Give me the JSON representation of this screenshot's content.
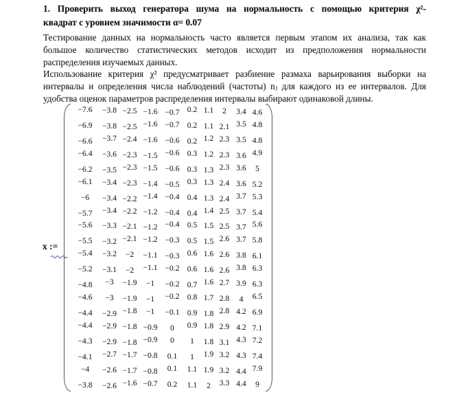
{
  "heading": {
    "line1": "1. Проверить выход генератора шума на нормальность с помощью критерия χ²-",
    "line2": "квадрат с уровнем значимости α= 0.07"
  },
  "paragraph1": {
    "line1": "Тестирование данных на нормальность часто является первым этапом их анализа, так как",
    "line2": "большое количество статистических методов исходит из предположения нормальности",
    "line3": "распределения изучаемых данных."
  },
  "paragraph2": {
    "line1": "Использование критерия χ² предусматривает разбиение размаха варьирования выборки на",
    "line2": "интервалы и определения числа наблюдений (частоты) nⱼ для каждого из ее интервалов. Для",
    "line3": "удобства оценок параметров распределения интервалы выбирают одинаковой длины."
  },
  "assignment": {
    "label": "x :="
  },
  "matrix": {
    "rows": 20,
    "cols": 10,
    "values": [
      [
        -7.6,
        -3.8,
        -2.5,
        -1.6,
        -0.7,
        0.2,
        1.1,
        2,
        3.4,
        4.6
      ],
      [
        -6.9,
        -3.8,
        -2.5,
        -1.6,
        -0.7,
        0.2,
        1.1,
        2.1,
        3.5,
        4.8
      ],
      [
        -6.6,
        -3.7,
        -2.4,
        -1.6,
        -0.6,
        0.2,
        1.2,
        2.3,
        3.5,
        4.8
      ],
      [
        -6.4,
        -3.6,
        -2.3,
        -1.5,
        -0.6,
        0.3,
        1.2,
        2.3,
        3.6,
        4.9
      ],
      [
        -6.2,
        -3.5,
        -2.3,
        -1.5,
        -0.6,
        0.3,
        1.3,
        2.3,
        3.6,
        5
      ],
      [
        -6.1,
        -3.4,
        -2.3,
        -1.4,
        -0.5,
        0.3,
        1.3,
        2.4,
        3.6,
        5.2
      ],
      [
        -6,
        -3.4,
        -2.2,
        -1.4,
        -0.4,
        0.4,
        1.3,
        2.4,
        3.7,
        5.3
      ],
      [
        -5.7,
        -3.4,
        -2.2,
        -1.2,
        -0.4,
        0.4,
        1.4,
        2.5,
        3.7,
        5.4
      ],
      [
        -5.6,
        -3.3,
        -2.1,
        -1.2,
        -0.4,
        0.5,
        1.5,
        2.5,
        3.7,
        5.6
      ],
      [
        -5.5,
        -3.2,
        -2.1,
        -1.2,
        -0.3,
        0.5,
        1.5,
        2.6,
        3.7,
        5.8
      ],
      [
        -5.4,
        -3.2,
        -2,
        -1.1,
        -0.3,
        0.6,
        1.6,
        2.6,
        3.8,
        6.1
      ],
      [
        -5.2,
        -3.1,
        -2,
        -1.1,
        -0.2,
        0.6,
        1.6,
        2.6,
        3.8,
        6.3
      ],
      [
        -4.8,
        -3,
        -1.9,
        -1,
        -0.2,
        0.7,
        1.6,
        2.7,
        3.9,
        6.3
      ],
      [
        -4.6,
        -3,
        -1.9,
        -1,
        -0.2,
        0.8,
        1.7,
        2.8,
        4,
        6.5
      ],
      [
        -4.4,
        -2.9,
        -1.8,
        -1,
        -0.1,
        0.9,
        1.8,
        2.8,
        4.2,
        6.9
      ],
      [
        -4.4,
        -2.9,
        -1.8,
        -0.9,
        0,
        0.9,
        1.8,
        2.9,
        4.2,
        7.1
      ],
      [
        -4.3,
        -2.9,
        -1.8,
        -0.9,
        0,
        1,
        1.8,
        3.1,
        4.3,
        7.2
      ],
      [
        -4.1,
        -2.7,
        -1.7,
        -0.8,
        0.1,
        1,
        1.9,
        3.2,
        4.3,
        7.4
      ],
      [
        -4,
        -2.6,
        -1.7,
        -0.8,
        0.1,
        1.1,
        1.9,
        3.2,
        4.4,
        7.9
      ],
      [
        -3.8,
        -2.6,
        -1.6,
        -0.7,
        0.2,
        1.1,
        2,
        3.3,
        4.4,
        9
      ]
    ]
  },
  "colors": {
    "text": "#1b1b20",
    "heading": "#141419",
    "paren": "#56565c",
    "squiggle": "#6767d2"
  }
}
